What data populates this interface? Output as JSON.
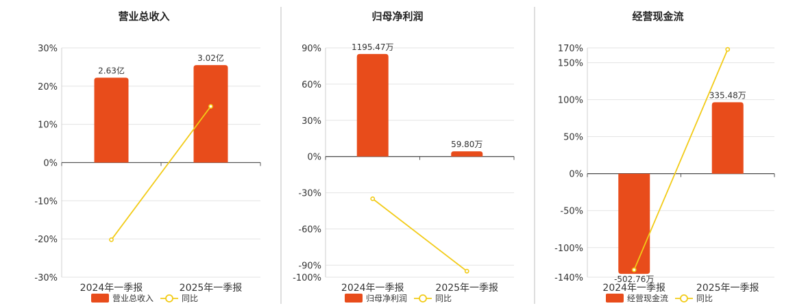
{
  "chart_data": [
    {
      "type": "bar",
      "title": "营业总收入",
      "categories": [
        "2024年一季报",
        "2025年一季报"
      ],
      "series": [
        {
          "name": "营业总收入",
          "kind": "bar",
          "bar_labels": [
            "2.63亿",
            "3.02亿"
          ],
          "values": [
            22.2,
            25.5
          ]
        },
        {
          "name": "同比",
          "kind": "line",
          "values": [
            -20.2,
            14.7
          ]
        }
      ],
      "ylim": [
        -30,
        30
      ],
      "yticks": [
        30,
        20,
        10,
        0,
        -10,
        -20,
        -30
      ],
      "ytick_labels": [
        "30%",
        "20%",
        "10%",
        "0%",
        "-10%",
        "-20%",
        "-30%"
      ],
      "grid": true,
      "legend": "bottom"
    },
    {
      "type": "bar",
      "title": "归母净利润",
      "categories": [
        "2024年一季报",
        "2025年一季报"
      ],
      "series": [
        {
          "name": "归母净利润",
          "kind": "bar",
          "bar_labels": [
            "1195.47万",
            "59.80万"
          ],
          "values": [
            85.0,
            4.3
          ]
        },
        {
          "name": "同比",
          "kind": "line",
          "values": [
            -35,
            -95
          ]
        }
      ],
      "ylim": [
        -100,
        90
      ],
      "yticks": [
        90,
        60,
        30,
        0,
        -30,
        -60,
        -90,
        -100
      ],
      "ytick_labels": [
        "90%",
        "60%",
        "30%",
        "0%",
        "-30%",
        "-60%",
        "-90%",
        "-100%"
      ],
      "grid": true,
      "legend": "bottom"
    },
    {
      "type": "bar",
      "title": "经营现金流",
      "categories": [
        "2024年一季报",
        "2025年一季报"
      ],
      "series": [
        {
          "name": "经营现金流",
          "kind": "bar",
          "bar_labels": [
            "-502.76万",
            "335.48万"
          ],
          "values": [
            -135.5,
            96.5
          ]
        },
        {
          "name": "同比",
          "kind": "line",
          "values": [
            -130,
            168
          ]
        }
      ],
      "ylim": [
        -140,
        170
      ],
      "yticks": [
        170,
        150,
        100,
        50,
        0,
        -50,
        -100,
        -140
      ],
      "ytick_labels": [
        "170%",
        "150%",
        "100%",
        "50%",
        "0%",
        "-50%",
        "-100%",
        "-140%"
      ],
      "grid": true,
      "legend": "bottom"
    }
  ],
  "colors": {
    "bar": "#e84c1b",
    "line": "#f2cb17",
    "grid": "#e3e3e3",
    "axis": "#555555",
    "text": "#333333",
    "title": "#222222"
  }
}
